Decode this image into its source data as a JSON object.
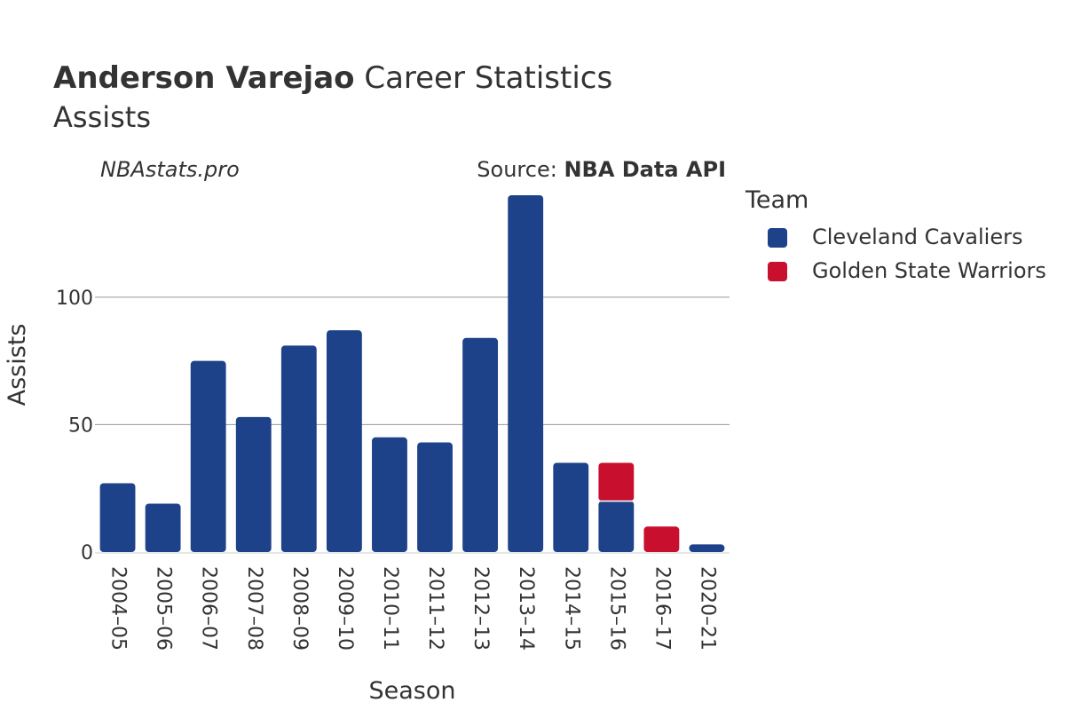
{
  "header": {
    "title_bold": "Anderson Varejao",
    "title_rest": " Career Statistics",
    "subtitle": "Assists",
    "credit": "NBAstats.pro",
    "source_label": "Source: ",
    "source_value": "NBA Data API"
  },
  "legend": {
    "title": "Team",
    "items": [
      {
        "label": "Cleveland Cavaliers",
        "color": "#1d4289"
      },
      {
        "label": "Golden State Warriors",
        "color": "#c8102e"
      }
    ]
  },
  "chart_data": {
    "type": "bar",
    "stacked": true,
    "xlabel": "Season",
    "ylabel": "Assists",
    "ylim": [
      0,
      140
    ],
    "yticks": [
      0,
      50,
      100
    ],
    "grid": true,
    "legend_position": "right",
    "categories": [
      "2004–05",
      "2005–06",
      "2006–07",
      "2007–08",
      "2008–09",
      "2009–10",
      "2010–11",
      "2011–12",
      "2012–13",
      "2013–14",
      "2014–15",
      "2015–16",
      "2016–17",
      "2020–21"
    ],
    "series": [
      {
        "name": "Cleveland Cavaliers",
        "color": "#1d4289",
        "values": [
          27,
          19,
          75,
          53,
          81,
          87,
          45,
          43,
          84,
          140,
          35,
          20,
          0,
          3
        ]
      },
      {
        "name": "Golden State Warriors",
        "color": "#c8102e",
        "values": [
          0,
          0,
          0,
          0,
          0,
          0,
          0,
          0,
          0,
          0,
          0,
          15,
          10,
          0
        ]
      }
    ]
  }
}
